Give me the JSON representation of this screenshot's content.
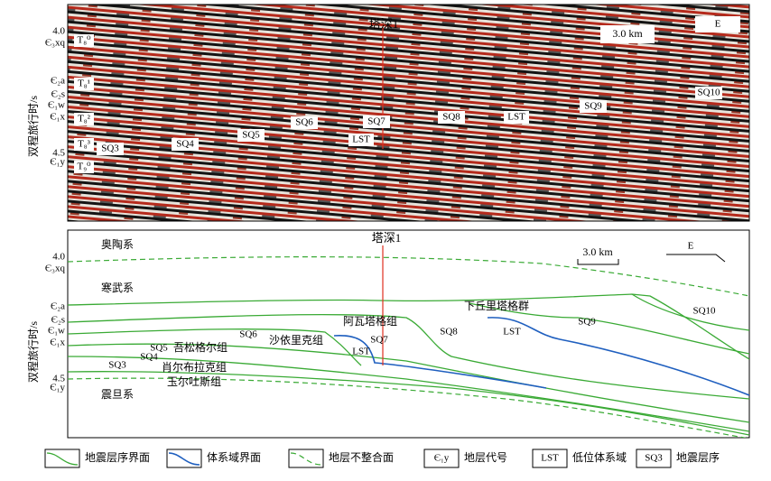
{
  "top_panel": {
    "well": "塔深1",
    "scale": "3.0 km",
    "direction": "E",
    "y_axis_label": "双程旅行时/s",
    "y_ticks": [
      "4.0",
      "4.5"
    ],
    "formations": [
      "Є₃xq",
      "Є₂a",
      "Є₂s",
      "Є₁w",
      "Є₁x",
      "Є₁y"
    ],
    "horizons": [
      "T₈⁰",
      "T₈¹",
      "T₈²",
      "T₈³",
      "T₉⁰"
    ],
    "sequences": [
      "SQ3",
      "SQ4",
      "SQ5",
      "SQ6",
      "SQ7",
      "SQ8",
      "SQ9",
      "SQ10"
    ],
    "systems_tracts": [
      "LST",
      "LST"
    ]
  },
  "bottom_panel": {
    "well": "塔深1",
    "scale": "3.0 km",
    "direction": "E",
    "y_axis_label": "双程旅行时/s",
    "y_ticks": [
      "4.0",
      "4.5"
    ],
    "formations": [
      "Є₃xq",
      "Є₂a",
      "Є₂s",
      "Є₁w",
      "Є₁x",
      "Є₁y"
    ],
    "systems": [
      "奥陶系",
      "寒武系",
      "震旦系"
    ],
    "units": [
      "下丘里塔格群",
      "阿瓦塔格组",
      "沙依里克组",
      "吾松格尔组",
      "肖尔布拉克组",
      "玉尔吐斯组"
    ],
    "sequences": [
      "SQ3",
      "SQ4",
      "SQ5",
      "SQ6",
      "SQ7",
      "SQ8",
      "SQ9",
      "SQ10"
    ],
    "systems_tracts": [
      "LST",
      "LST"
    ]
  },
  "legend": [
    {
      "label": "地震层序界面"
    },
    {
      "label": "体系域界面"
    },
    {
      "label": "地层不整合面"
    },
    {
      "symbol": "Є₁y",
      "label": "地层代号"
    },
    {
      "symbol": "LST",
      "label": "低位体系域"
    },
    {
      "symbol": "SQ3",
      "label": "地震层序"
    }
  ]
}
